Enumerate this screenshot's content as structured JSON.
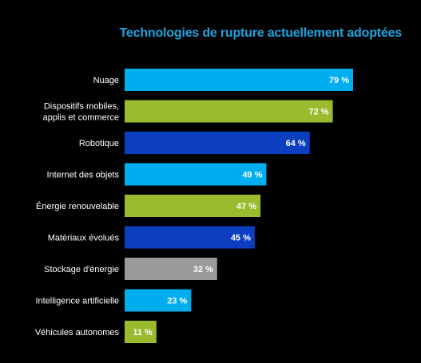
{
  "chart_data": {
    "type": "bar",
    "orientation": "horizontal",
    "title": "Technologies de rupture actuellement adoptées",
    "categories": [
      "Nuage",
      "Dispositifs mobiles,\napplis et commerce",
      "Robotique",
      "Internet des objets",
      "Énergie renouvelable",
      "Matériaux évolués",
      "Stockage d'énergie",
      "Intelligence artificielle",
      "Véhicules autonomes"
    ],
    "values": [
      79,
      72,
      64,
      49,
      47,
      45,
      32,
      23,
      11
    ],
    "value_labels": [
      "79 %",
      "72 %",
      "64 %",
      "49 %",
      "47 %",
      "45 %",
      "32 %",
      "23 %",
      "11 %"
    ],
    "bar_colors": [
      "#00ADEF",
      "#9BBB2F",
      "#0B3FBF",
      "#00ADEF",
      "#9BBB2F",
      "#0B3FBF",
      "#9A9A9A",
      "#00ADEF",
      "#9BBB2F"
    ],
    "xlim": [
      0,
      100
    ],
    "grid": false,
    "legend": "none",
    "background": "#000000",
    "title_color": "#1EA4E0",
    "label_color": "#FFFFFF"
  }
}
